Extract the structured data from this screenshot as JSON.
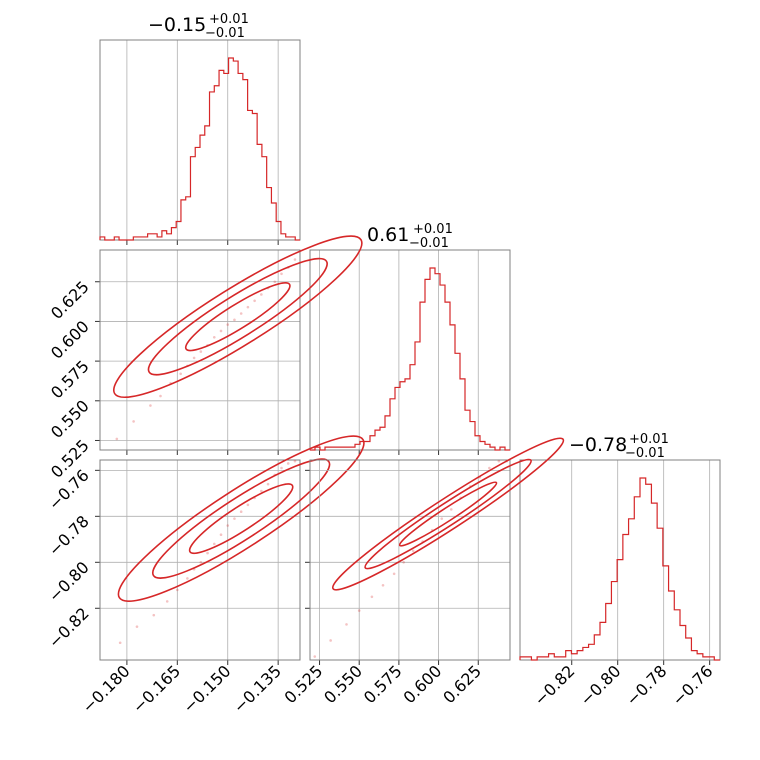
{
  "chart_data": [
    {
      "type": "histogram",
      "panel": "diag-0",
      "title": "−0.15",
      "title_plus": "+0.01",
      "title_minus": "−0.01",
      "xlim": [
        -0.188,
        -0.1285
      ],
      "x_ticks": [
        -0.18,
        -0.165,
        -0.15,
        -0.135
      ],
      "x_tick_labels": [
        "−0.180",
        "−0.165",
        "−0.150",
        "−0.135"
      ],
      "bin_edges_range": [
        -0.188,
        -0.1285
      ],
      "counts": [
        1,
        0,
        0,
        1,
        0,
        0,
        0,
        1,
        1,
        1,
        2,
        2,
        1,
        3,
        2,
        4,
        6,
        13,
        14,
        27,
        30,
        34,
        37,
        48,
        50,
        55,
        54,
        59,
        58,
        54,
        52,
        42,
        41,
        31,
        27,
        17,
        12,
        6,
        2,
        1,
        1,
        0
      ],
      "color": "#d62728"
    },
    {
      "type": "histogram",
      "panel": "diag-1",
      "title": "0.61",
      "title_plus": "+0.01",
      "title_minus": "−0.01",
      "xlim": [
        0.519,
        0.645
      ],
      "x_ticks": [
        0.525,
        0.55,
        0.575,
        0.6,
        0.625
      ],
      "x_tick_labels": [
        "0.525",
        "0.550",
        "0.575",
        "0.600",
        "0.625"
      ],
      "bin_edges_range": [
        0.519,
        0.645
      ],
      "counts": [
        0,
        1,
        0,
        1,
        1,
        1,
        1,
        1,
        1,
        2,
        3,
        3,
        5,
        7,
        8,
        12,
        18,
        22,
        24,
        25,
        30,
        38,
        52,
        60,
        64,
        62,
        58,
        52,
        44,
        34,
        25,
        14,
        10,
        5,
        3,
        2,
        1,
        0,
        1,
        0
      ],
      "color": "#d62728"
    },
    {
      "type": "histogram",
      "panel": "diag-2",
      "title": "−0.78",
      "title_plus": "+0.01",
      "title_minus": "−0.01",
      "xlim": [
        -0.8425,
        -0.7555
      ],
      "x_ticks": [
        -0.82,
        -0.8,
        -0.78,
        -0.76
      ],
      "x_tick_labels": [
        "−0.82",
        "−0.80",
        "−0.78",
        "−0.76"
      ],
      "bin_edges_range": [
        -0.8425,
        -0.7555
      ],
      "counts": [
        1,
        1,
        0,
        1,
        1,
        2,
        1,
        1,
        3,
        2,
        3,
        4,
        5,
        8,
        12,
        18,
        25,
        32,
        40,
        45,
        52,
        58,
        56,
        50,
        42,
        30,
        22,
        16,
        11,
        7,
        3,
        2,
        1,
        1,
        0
      ],
      "color": "#d62728"
    },
    {
      "type": "scatter",
      "panel": "offdiag-1-0",
      "xlim": [
        -0.188,
        -0.1285
      ],
      "ylim": [
        0.519,
        0.645
      ],
      "x_ticks": [
        -0.18,
        -0.165,
        -0.15,
        -0.135
      ],
      "y_ticks": [
        0.525,
        0.55,
        0.575,
        0.6,
        0.625
      ],
      "y_tick_labels": [
        "0.525",
        "0.550",
        "0.575",
        "0.600",
        "0.625"
      ],
      "points_x": [
        -0.183,
        -0.178,
        -0.173,
        -0.17,
        -0.167,
        -0.164,
        -0.162,
        -0.16,
        -0.158,
        -0.156,
        -0.154,
        -0.152,
        -0.15,
        -0.148,
        -0.146,
        -0.144,
        -0.142,
        -0.14,
        -0.138,
        -0.136,
        -0.134,
        -0.132,
        -0.13
      ],
      "points_y": [
        0.526,
        0.537,
        0.547,
        0.553,
        0.561,
        0.567,
        0.572,
        0.577,
        0.581,
        0.585,
        0.59,
        0.594,
        0.598,
        0.601,
        0.605,
        0.609,
        0.613,
        0.617,
        0.621,
        0.625,
        0.63,
        0.634,
        0.639
      ],
      "contour_center": [
        -0.147,
        0.603
      ],
      "contour_angle_deg": 32,
      "contour_radii_data": [
        0.018,
        0.0035
      ],
      "color": "#d62728"
    },
    {
      "type": "scatter",
      "panel": "offdiag-2-0",
      "xlim": [
        -0.188,
        -0.1285
      ],
      "ylim": [
        -0.8425,
        -0.7555
      ],
      "x_ticks": [
        -0.18,
        -0.165,
        -0.15,
        -0.135
      ],
      "y_ticks": [
        -0.82,
        -0.8,
        -0.78,
        -0.76
      ],
      "y_tick_labels": [
        "−0.82",
        "−0.80",
        "−0.78",
        "−0.76"
      ],
      "points_x": [
        -0.182,
        -0.177,
        -0.172,
        -0.168,
        -0.165,
        -0.162,
        -0.16,
        -0.158,
        -0.156,
        -0.154,
        -0.152,
        -0.15,
        -0.148,
        -0.146,
        -0.144,
        -0.142,
        -0.14,
        -0.138,
        -0.136,
        -0.134,
        -0.132,
        -0.13
      ],
      "points_y": [
        -0.835,
        -0.828,
        -0.823,
        -0.817,
        -0.812,
        -0.807,
        -0.803,
        -0.8,
        -0.796,
        -0.792,
        -0.788,
        -0.784,
        -0.781,
        -0.778,
        -0.775,
        -0.772,
        -0.769,
        -0.766,
        -0.762,
        -0.759,
        -0.757,
        -0.756
      ],
      "contour_center": [
        -0.146,
        -0.781
      ],
      "contour_angle_deg": 33,
      "contour_radii_data": [
        0.018,
        0.0035
      ],
      "color": "#d62728"
    },
    {
      "type": "scatter",
      "panel": "offdiag-2-1",
      "xlim": [
        0.519,
        0.645
      ],
      "ylim": [
        -0.8425,
        -0.7555
      ],
      "x_ticks": [
        0.525,
        0.55,
        0.575,
        0.6,
        0.625
      ],
      "y_ticks": [
        -0.82,
        -0.8,
        -0.78,
        -0.76
      ],
      "points_x": [
        0.522,
        0.532,
        0.542,
        0.55,
        0.558,
        0.565,
        0.572,
        0.578,
        0.584,
        0.59,
        0.596,
        0.602,
        0.608,
        0.614,
        0.62,
        0.626,
        0.632,
        0.638,
        0.643
      ],
      "points_y": [
        -0.841,
        -0.834,
        -0.827,
        -0.821,
        -0.815,
        -0.81,
        -0.805,
        -0.8,
        -0.795,
        -0.791,
        -0.786,
        -0.781,
        -0.777,
        -0.772,
        -0.767,
        -0.763,
        -0.759,
        -0.756,
        -0.756
      ],
      "contour_center": [
        0.606,
        -0.779
      ],
      "contour_angle_deg": 33,
      "contour_radii_data": [
        0.036,
        0.004
      ],
      "color": "#d62728"
    }
  ]
}
